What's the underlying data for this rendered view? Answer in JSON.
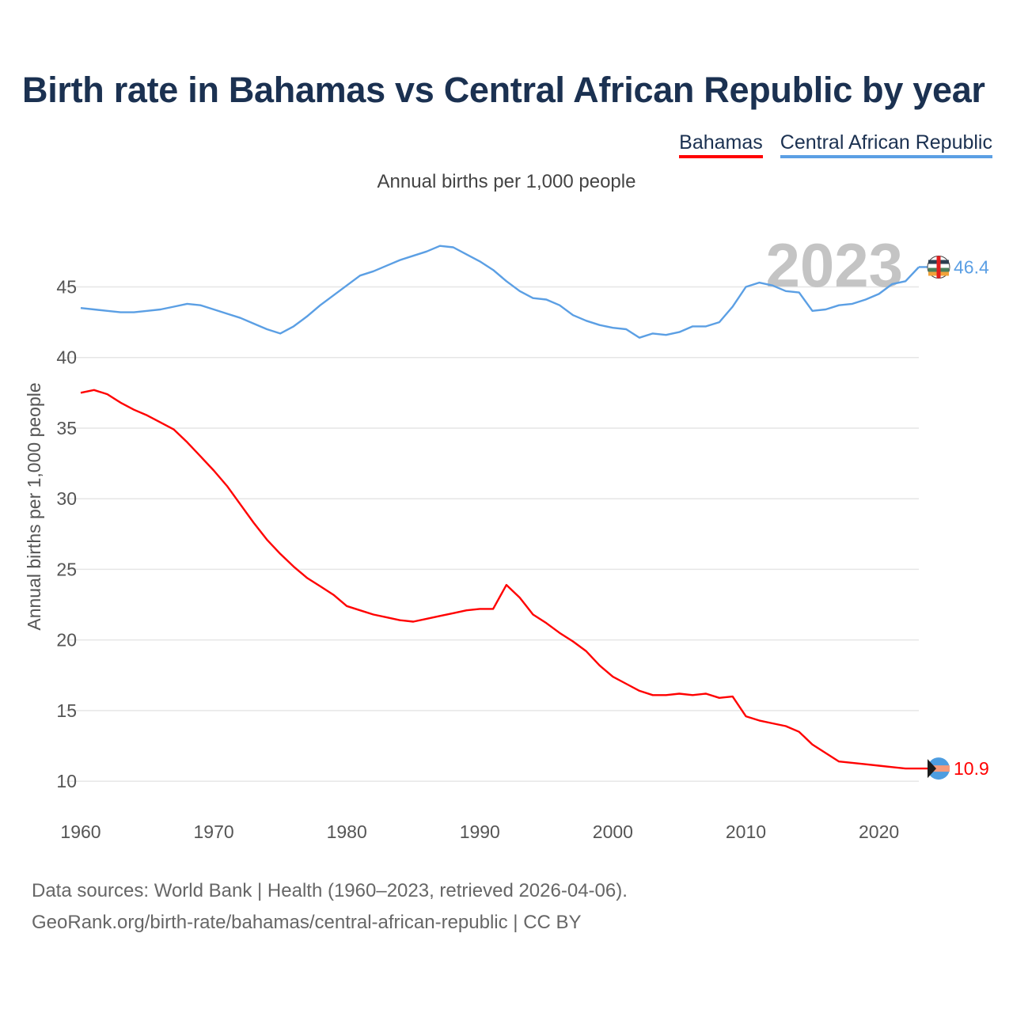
{
  "chart_data": {
    "type": "line",
    "title": "Birth rate in Bahamas vs Central African Republic by year",
    "subtitle": "Annual births per 1,000 people",
    "ylabel": "Annual births per 1,000 people",
    "xlabel": "",
    "xlim": [
      1960,
      2023
    ],
    "ylim": [
      9,
      48.5
    ],
    "x_ticks": [
      1960,
      1970,
      1980,
      1990,
      2000,
      2010,
      2020
    ],
    "y_ticks": [
      10,
      15,
      20,
      25,
      30,
      35,
      40,
      45
    ],
    "watermark_year": "2023",
    "categories": [
      1960,
      1961,
      1962,
      1963,
      1964,
      1965,
      1966,
      1967,
      1968,
      1969,
      1970,
      1971,
      1972,
      1973,
      1974,
      1975,
      1976,
      1977,
      1978,
      1979,
      1980,
      1981,
      1982,
      1983,
      1984,
      1985,
      1986,
      1987,
      1988,
      1989,
      1990,
      1991,
      1992,
      1993,
      1994,
      1995,
      1996,
      1997,
      1998,
      1999,
      2000,
      2001,
      2002,
      2003,
      2004,
      2005,
      2006,
      2007,
      2008,
      2009,
      2010,
      2011,
      2012,
      2013,
      2014,
      2015,
      2016,
      2017,
      2018,
      2019,
      2020,
      2021,
      2022,
      2023
    ],
    "series": [
      {
        "name": "Bahamas",
        "color": "#ff0000",
        "end_label": "10.9",
        "values": [
          37.5,
          37.7,
          37.4,
          36.8,
          36.3,
          35.9,
          35.4,
          34.9,
          34.0,
          33.0,
          32.0,
          30.9,
          29.6,
          28.3,
          27.1,
          26.1,
          25.2,
          24.4,
          23.8,
          23.2,
          22.4,
          22.1,
          21.8,
          21.6,
          21.4,
          21.3,
          21.5,
          21.7,
          21.9,
          22.1,
          22.2,
          22.2,
          23.9,
          23.0,
          21.8,
          21.2,
          20.5,
          19.9,
          19.2,
          18.2,
          17.4,
          16.9,
          16.4,
          16.1,
          16.1,
          16.2,
          16.1,
          16.2,
          15.9,
          16.0,
          14.6,
          14.3,
          14.1,
          13.9,
          13.5,
          12.6,
          12.0,
          11.4,
          11.3,
          11.2,
          11.1,
          11.0,
          10.9,
          10.9
        ]
      },
      {
        "name": "Central African Republic",
        "color": "#5b9fe4",
        "end_label": "46.4",
        "values": [
          43.5,
          43.4,
          43.3,
          43.2,
          43.2,
          43.3,
          43.4,
          43.6,
          43.8,
          43.7,
          43.4,
          43.1,
          42.8,
          42.4,
          42.0,
          41.7,
          42.2,
          42.9,
          43.7,
          44.4,
          45.1,
          45.8,
          46.1,
          46.5,
          46.9,
          47.2,
          47.5,
          47.9,
          47.8,
          47.3,
          46.8,
          46.2,
          45.4,
          44.7,
          44.2,
          44.1,
          43.7,
          43.0,
          42.6,
          42.3,
          42.1,
          42.0,
          41.4,
          41.7,
          41.6,
          41.8,
          42.2,
          42.2,
          42.5,
          43.6,
          45.0,
          45.3,
          45.1,
          44.7,
          44.6,
          43.3,
          43.4,
          43.7,
          43.8,
          44.1,
          44.5,
          45.2,
          45.4,
          46.4
        ]
      }
    ]
  },
  "footer": {
    "line1": "Data sources: World Bank | Health (1960–2023, retrieved 2026-04-06).",
    "line2": "GeoRank.org/birth-rate/bahamas/central-african-republic | CC BY"
  }
}
